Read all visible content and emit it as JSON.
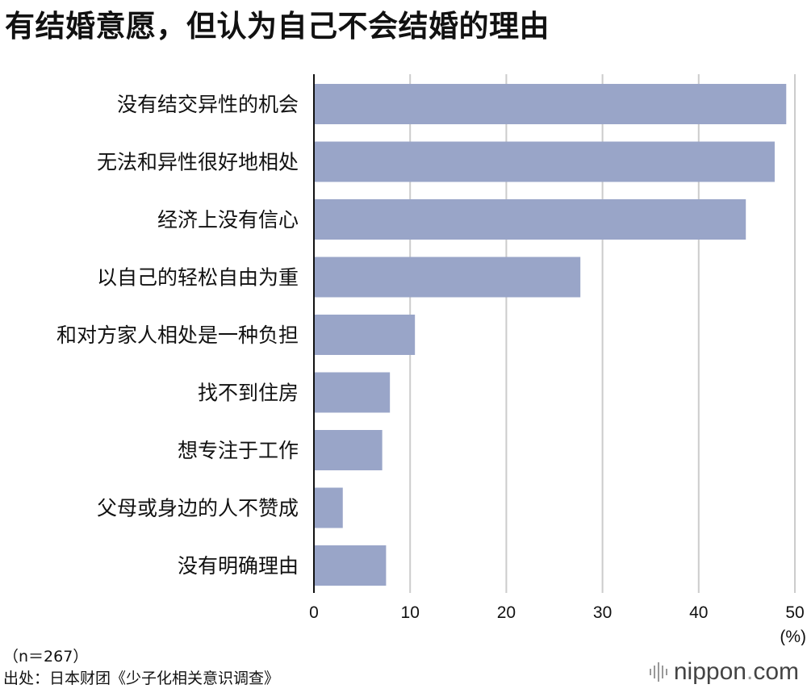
{
  "title": "有结婚意愿，但认为自己不会结婚的理由",
  "notes": {
    "sample": "（n＝267）",
    "source": "出处：日本财团《少子化相关意识调查》"
  },
  "brand": {
    "name": "nippon",
    "dot": ".",
    "tld": "com"
  },
  "colors": {
    "bar": "#99a5c8",
    "grid": "#cccccc",
    "axis": "#111111"
  },
  "chart_data": {
    "type": "bar",
    "orientation": "horizontal",
    "categories": [
      "没有结交异性的机会",
      "无法和异性很好地相处",
      "经济上没有信心",
      "以自己的轻松自由为重",
      "和对方家人相处是一种负担",
      "找不到住房",
      "想专注于工作",
      "父母或身边的人不赞成",
      "没有明确理由"
    ],
    "values": [
      49.1,
      47.9,
      44.9,
      27.7,
      10.5,
      7.9,
      7.1,
      3.0,
      7.5
    ],
    "xlim": [
      0,
      50
    ],
    "xticks": [
      "0",
      "10",
      "20",
      "30",
      "40",
      "50"
    ],
    "unit_label": "(%)",
    "grid": true
  }
}
